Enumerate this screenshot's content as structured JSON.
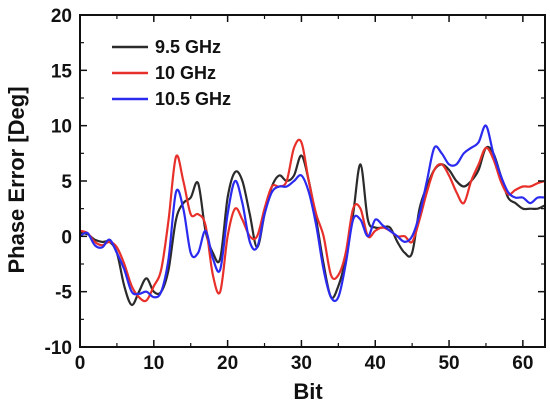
{
  "chart_data": {
    "type": "line",
    "title": "",
    "xlabel": "Bit",
    "ylabel": "Phase Error [Deg]",
    "xlim": [
      0,
      63
    ],
    "ylim": [
      -10,
      20
    ],
    "xticks": [
      0,
      10,
      20,
      30,
      40,
      50,
      60
    ],
    "yticks": [
      -10,
      -5,
      0,
      5,
      10,
      15,
      20
    ],
    "grid": false,
    "legend_position": "top-left",
    "series": [
      {
        "name": "9.5 GHz",
        "color": "#2b2b2b",
        "x": [
          0,
          1,
          2,
          3,
          4,
          5,
          6,
          7,
          8,
          9,
          10,
          11,
          12,
          13,
          14,
          15,
          16,
          17,
          18,
          19,
          20,
          21,
          22,
          23,
          24,
          25,
          26,
          27,
          28,
          29,
          30,
          31,
          32,
          33,
          34,
          35,
          36,
          37,
          38,
          39,
          40,
          41,
          42,
          43,
          44,
          45,
          46,
          47,
          48,
          49,
          50,
          51,
          52,
          53,
          54,
          55,
          56,
          57,
          58,
          59,
          60,
          61,
          62,
          63
        ],
        "values": [
          0.3,
          0.2,
          -0.3,
          -0.5,
          -0.5,
          -1.5,
          -4.5,
          -6.2,
          -5.0,
          -3.8,
          -5.0,
          -5.0,
          -3.0,
          1.5,
          3.0,
          3.5,
          4.8,
          0.5,
          -1.5,
          -2.0,
          3.5,
          5.8,
          5.0,
          2.0,
          -1.0,
          2.0,
          4.5,
          5.5,
          5.0,
          5.5,
          7.3,
          5.0,
          1.5,
          -2.5,
          -5.5,
          -4.5,
          -2.0,
          2.0,
          6.5,
          1.5,
          0.8,
          0.8,
          0.8,
          -0.5,
          -1.5,
          -1.5,
          2.5,
          4.5,
          6.0,
          6.5,
          6.0,
          5.0,
          4.5,
          5.0,
          6.0,
          8.0,
          7.5,
          5.5,
          3.5,
          3.0,
          2.5,
          2.5,
          2.5,
          2.8
        ]
      },
      {
        "name": "10 GHz",
        "color": "#e8302b",
        "x": [
          0,
          1,
          2,
          3,
          4,
          5,
          6,
          7,
          8,
          9,
          10,
          11,
          12,
          13,
          14,
          15,
          16,
          17,
          18,
          19,
          20,
          21,
          22,
          23,
          24,
          25,
          26,
          27,
          28,
          29,
          30,
          31,
          32,
          33,
          34,
          35,
          36,
          37,
          38,
          39,
          40,
          41,
          42,
          43,
          44,
          45,
          46,
          47,
          48,
          49,
          50,
          51,
          52,
          53,
          54,
          55,
          56,
          57,
          58,
          59,
          60,
          61,
          62,
          63
        ],
        "values": [
          0.5,
          0.3,
          -0.5,
          -0.8,
          -0.5,
          -1.0,
          -2.5,
          -4.5,
          -5.5,
          -5.8,
          -4.5,
          -3.0,
          1.5,
          7.2,
          5.0,
          2.0,
          2.0,
          1.0,
          -3.5,
          -5.0,
          0.0,
          2.5,
          1.5,
          0.0,
          0.0,
          2.5,
          4.5,
          4.5,
          5.0,
          8.0,
          8.5,
          5.0,
          2.0,
          0.0,
          -3.5,
          -3.5,
          -1.5,
          2.5,
          2.5,
          0.0,
          0.5,
          0.8,
          0.5,
          0.0,
          0.0,
          -0.5,
          1.5,
          4.0,
          6.0,
          6.5,
          5.5,
          4.0,
          3.0,
          5.0,
          6.5,
          8.0,
          7.0,
          5.0,
          3.8,
          4.2,
          4.5,
          4.5,
          4.8,
          5.0
        ]
      },
      {
        "name": "10.5 GHz",
        "color": "#2b2bf0",
        "x": [
          0,
          1,
          2,
          3,
          4,
          5,
          6,
          7,
          8,
          9,
          10,
          11,
          12,
          13,
          14,
          15,
          16,
          17,
          18,
          19,
          20,
          21,
          22,
          23,
          24,
          25,
          26,
          27,
          28,
          29,
          30,
          31,
          32,
          33,
          34,
          35,
          36,
          37,
          38,
          39,
          40,
          41,
          42,
          43,
          44,
          45,
          46,
          47,
          48,
          49,
          50,
          51,
          52,
          53,
          54,
          55,
          56,
          57,
          58,
          59,
          60,
          61,
          62,
          63
        ],
        "values": [
          0.0,
          0.3,
          -0.8,
          -1.0,
          -0.3,
          -1.5,
          -3.0,
          -5.0,
          -5.2,
          -5.0,
          -5.5,
          -5.0,
          -2.0,
          4.0,
          2.5,
          -1.5,
          -1.5,
          0.5,
          -2.0,
          -3.0,
          2.0,
          5.0,
          3.0,
          -0.5,
          -1.0,
          2.0,
          4.0,
          4.5,
          4.5,
          5.0,
          5.5,
          4.0,
          1.0,
          -3.0,
          -5.5,
          -5.5,
          -2.5,
          1.5,
          1.5,
          0.0,
          1.5,
          1.0,
          0.5,
          0.0,
          -0.5,
          0.0,
          2.0,
          5.0,
          8.0,
          7.5,
          6.5,
          6.5,
          7.5,
          8.0,
          8.5,
          10.0,
          7.5,
          5.5,
          4.0,
          3.5,
          3.5,
          3.0,
          3.5,
          3.5
        ]
      }
    ]
  }
}
